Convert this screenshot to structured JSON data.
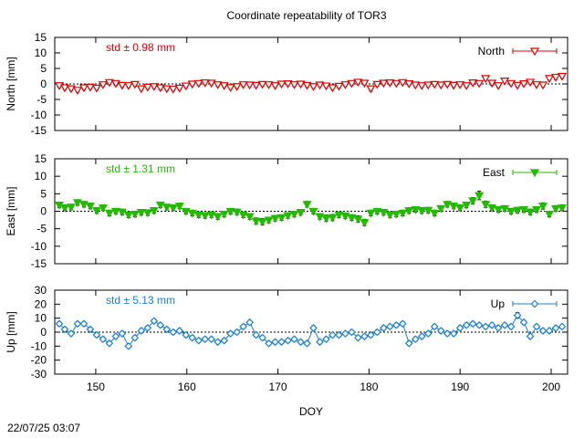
{
  "title": "Coordinate repeatability of TOR3",
  "timestamp": "22/07/25 03:07",
  "colors": {
    "north": "#dd0000",
    "east": "#22bb00",
    "up": "#1a80d8",
    "errorbar": "#000000"
  },
  "chart_data": [
    {
      "type": "scatter",
      "name": "North",
      "legend": "North",
      "legend_marker": "triangle-down-open",
      "ylabel": "North [mm]",
      "std_label": "std ± 0.98 mm",
      "xlim": [
        145.5,
        201.8
      ],
      "ylim": [
        -15,
        15
      ],
      "yticks": [
        -15,
        -10,
        -5,
        0,
        5,
        10,
        15
      ],
      "xticks": [
        150,
        160,
        170,
        180,
        190,
        200
      ],
      "x": [
        146,
        146.6,
        147.3,
        148,
        148.7,
        149.4,
        150.1,
        150.8,
        151.5,
        152.2,
        152.9,
        153.6,
        154.3,
        155,
        155.7,
        156.4,
        157.1,
        157.8,
        158.5,
        159.2,
        159.9,
        160.6,
        161.3,
        162,
        162.7,
        163.4,
        164.1,
        164.8,
        165.5,
        166.2,
        166.9,
        167.6,
        168.3,
        169,
        169.7,
        170.4,
        171.1,
        171.8,
        172.5,
        173.2,
        173.9,
        174.6,
        175.3,
        176,
        176.7,
        177.4,
        178.1,
        178.8,
        179.5,
        180.2,
        180.9,
        181.6,
        182.3,
        183,
        183.7,
        184.4,
        185.1,
        185.8,
        186.5,
        187.2,
        187.9,
        188.6,
        189.3,
        190,
        190.7,
        191.4,
        192.1,
        192.8,
        193.5,
        194.2,
        194.9,
        195.6,
        196.3,
        197,
        197.7,
        198.4,
        199.1,
        199.8,
        200.5,
        201.2
      ],
      "y": [
        -0.5,
        -1.2,
        -1.5,
        -2.0,
        -1.2,
        -1.0,
        -1.3,
        -0.2,
        0.5,
        0.2,
        -0.4,
        -0.5,
        -0.1,
        -1.5,
        -1.0,
        -0.8,
        -1.2,
        -1.5,
        -1.6,
        -1.3,
        -0.6,
        0.0,
        0.2,
        0.4,
        0.3,
        -0.2,
        -0.5,
        -1.1,
        -0.8,
        -0.2,
        -0.3,
        -0.4,
        -0.1,
        -0.2,
        -0.5,
        0.0,
        0.1,
        -0.2,
        0.0,
        -0.4,
        -0.8,
        -0.3,
        -0.6,
        -1.2,
        -0.7,
        -0.2,
        0.2,
        0.6,
        0.3,
        -1.5,
        -0.1,
        0.3,
        0.4,
        0.2,
        0.5,
        0.1,
        -0.3,
        -0.5,
        -0.3,
        -0.1,
        -0.3,
        -0.1,
        -0.4,
        -0.2,
        -0.5,
        0.4,
        0.2,
        1.8,
        0.3,
        -0.5,
        1.0,
        0.2,
        -0.4,
        0.1,
        0.6,
        -0.2,
        -0.3,
        1.8,
        2.2,
        2.5
      ],
      "errors": [
        0.6,
        0.6,
        0.6,
        0.6,
        0.6,
        0.6,
        0.6,
        0.6,
        0.6,
        0.7,
        0.6,
        0.6,
        0.6,
        0.6,
        0.6,
        0.6,
        0.7,
        0.6,
        0.6,
        0.6,
        0.6,
        0.6,
        0.6,
        0.6,
        0.6,
        0.6,
        0.6,
        0.6,
        0.6,
        0.6,
        0.6,
        0.6,
        0.6,
        0.6,
        0.6,
        0.6,
        0.6,
        0.6,
        0.6,
        0.6,
        0.6,
        0.6,
        0.6,
        0.6,
        0.6,
        0.6,
        0.6,
        0.7,
        0.6,
        0.8,
        0.6,
        0.6,
        0.6,
        0.6,
        0.6,
        0.6,
        0.6,
        0.6,
        0.6,
        0.6,
        0.6,
        0.6,
        0.6,
        0.6,
        0.6,
        0.6,
        0.6,
        0.6,
        0.8,
        0.6,
        0.6,
        0.6,
        0.6,
        0.6,
        0.6,
        0.6,
        0.6,
        0.6,
        0.7,
        0.6
      ]
    },
    {
      "type": "scatter",
      "name": "East",
      "legend": "East",
      "legend_marker": "triangle-down-filled",
      "ylabel": "East [mm]",
      "std_label": "std ± 1.31 mm",
      "xlim": [
        145.5,
        201.8
      ],
      "ylim": [
        -15,
        15
      ],
      "yticks": [
        -15,
        -10,
        -5,
        0,
        5,
        10,
        15
      ],
      "xticks": [
        150,
        160,
        170,
        180,
        190,
        200
      ],
      "x": [
        146,
        146.6,
        147.3,
        148,
        148.7,
        149.4,
        150.1,
        150.8,
        151.5,
        152.2,
        152.9,
        153.6,
        154.3,
        155,
        155.7,
        156.4,
        157.1,
        157.8,
        158.5,
        159.2,
        159.9,
        160.6,
        161.3,
        162,
        162.7,
        163.4,
        164.1,
        164.8,
        165.5,
        166.2,
        166.9,
        167.6,
        168.3,
        169,
        169.7,
        170.4,
        171.1,
        171.8,
        172.5,
        173.2,
        173.9,
        174.6,
        175.3,
        176,
        176.7,
        177.4,
        178.1,
        178.8,
        179.5,
        180.2,
        180.9,
        181.6,
        182.3,
        183,
        183.7,
        184.4,
        185.1,
        185.8,
        186.5,
        187.2,
        187.9,
        188.6,
        189.3,
        190,
        190.7,
        191.4,
        192.1,
        192.8,
        193.5,
        194.2,
        194.9,
        195.6,
        196.3,
        197,
        197.7,
        198.4,
        199.1,
        199.8,
        200.5,
        201.2
      ],
      "y": [
        1.8,
        1.0,
        1.2,
        2.5,
        2.0,
        1.5,
        0.2,
        1.0,
        -0.5,
        0.0,
        -0.2,
        -1.0,
        -0.8,
        -0.3,
        -0.4,
        0.2,
        1.8,
        1.2,
        1.0,
        1.5,
        0.0,
        -0.5,
        -1.0,
        -1.2,
        -1.0,
        -1.5,
        -0.8,
        0.0,
        -0.2,
        -1.0,
        -1.5,
        -2.8,
        -3.0,
        -2.5,
        -2.0,
        -1.8,
        -1.2,
        -0.8,
        -0.3,
        2.0,
        0.0,
        -1.5,
        -2.0,
        -1.8,
        -1.0,
        -1.3,
        -1.8,
        -2.2,
        -3.2,
        -0.5,
        0.0,
        -0.3,
        -1.0,
        -0.8,
        -0.5,
        0.2,
        0.5,
        0.2,
        0.3,
        -0.5,
        0.8,
        2.0,
        1.5,
        1.0,
        1.8,
        3.0,
        4.5,
        2.0,
        1.0,
        0.5,
        0.8,
        0.0,
        0.3,
        0.5,
        -0.2,
        0.5,
        1.5,
        -0.8,
        0.8,
        1.0
      ],
      "errors": [
        0.8,
        0.8,
        0.8,
        0.8,
        0.8,
        0.8,
        0.8,
        0.8,
        0.8,
        0.8,
        0.8,
        0.8,
        0.8,
        0.8,
        0.8,
        0.8,
        0.8,
        0.8,
        0.8,
        0.8,
        0.8,
        0.8,
        0.8,
        0.8,
        0.8,
        0.8,
        0.8,
        0.8,
        0.8,
        0.8,
        0.8,
        0.9,
        0.9,
        0.8,
        0.8,
        0.8,
        0.8,
        0.8,
        0.8,
        0.8,
        0.8,
        0.8,
        0.9,
        0.9,
        0.8,
        0.8,
        0.8,
        0.9,
        0.9,
        0.8,
        0.8,
        0.8,
        0.8,
        0.8,
        0.8,
        0.8,
        0.8,
        0.8,
        0.8,
        0.8,
        0.8,
        0.8,
        0.8,
        0.8,
        0.8,
        0.9,
        1.2,
        0.9,
        0.8,
        0.8,
        0.8,
        0.8,
        0.8,
        0.8,
        0.8,
        0.8,
        0.9,
        0.8,
        0.8,
        0.8
      ]
    },
    {
      "type": "line",
      "name": "Up",
      "legend": "Up",
      "legend_marker": "diamond-open",
      "ylabel": "Up [mm]",
      "std_label": "std ± 5.13 mm",
      "xlabel": "DOY",
      "xlim": [
        145.5,
        201.8
      ],
      "ylim": [
        -30,
        30
      ],
      "yticks": [
        -30,
        -20,
        -10,
        0,
        10,
        20,
        30
      ],
      "xticks": [
        150,
        160,
        170,
        180,
        190,
        200
      ],
      "x": [
        146,
        146.6,
        147.3,
        148,
        148.7,
        149.4,
        150.1,
        150.8,
        151.5,
        152.2,
        152.9,
        153.6,
        154.3,
        155,
        155.7,
        156.4,
        157.1,
        157.8,
        158.5,
        159.2,
        159.9,
        160.6,
        161.3,
        162,
        162.7,
        163.4,
        164.1,
        164.8,
        165.5,
        166.2,
        166.9,
        167.6,
        168.3,
        169,
        169.7,
        170.4,
        171.1,
        171.8,
        172.5,
        173.2,
        173.9,
        174.6,
        175.3,
        176,
        176.7,
        177.4,
        178.1,
        178.8,
        179.5,
        180.2,
        180.9,
        181.6,
        182.3,
        183,
        183.7,
        184.4,
        185.1,
        185.8,
        186.5,
        187.2,
        187.9,
        188.6,
        189.3,
        190,
        190.7,
        191.4,
        192.1,
        192.8,
        193.5,
        194.2,
        194.9,
        195.6,
        196.3,
        197,
        197.7,
        198.4,
        199.1,
        199.8,
        200.5,
        201.2
      ],
      "y": [
        6,
        2,
        -1,
        6,
        6,
        2,
        -2,
        -5,
        -8,
        -3,
        -1,
        -10,
        -4,
        1,
        3,
        8,
        5,
        2,
        0,
        1,
        -2,
        -4,
        -6,
        -5,
        -5,
        -7,
        -6,
        -1,
        0,
        4,
        7,
        -2,
        -4,
        -8,
        -7,
        -7,
        -6,
        -5,
        -7,
        -8,
        3,
        -7,
        -5,
        -2,
        -2,
        -1,
        0,
        -4,
        -3,
        -2,
        0,
        3,
        4,
        5,
        6,
        -8,
        -5,
        -3,
        -1,
        4,
        1,
        -1,
        -1,
        3,
        5,
        6,
        5,
        4,
        5,
        3,
        5,
        4,
        12,
        7,
        -3,
        4,
        1,
        1,
        3,
        4
      ],
      "errors": [
        1.5,
        1.5,
        1.5,
        1.5,
        1.5,
        1.5,
        1.5,
        1.5,
        1.5,
        1.5,
        1.5,
        1.5,
        1.5,
        1.5,
        1.5,
        1.5,
        1.5,
        1.5,
        1.5,
        1.5,
        1.5,
        1.5,
        1.5,
        1.5,
        1.5,
        1.5,
        1.5,
        1.5,
        1.5,
        1.5,
        1.5,
        1.5,
        1.5,
        1.5,
        1.5,
        1.5,
        1.5,
        1.5,
        1.5,
        1.5,
        1.5,
        1.5,
        1.5,
        1.5,
        1.5,
        1.5,
        1.5,
        1.5,
        1.5,
        1.5,
        1.5,
        1.5,
        1.5,
        1.5,
        1.5,
        1.5,
        1.5,
        1.5,
        1.5,
        1.5,
        1.5,
        1.5,
        1.5,
        1.5,
        1.5,
        1.5,
        1.5,
        1.5,
        1.5,
        1.5,
        1.5,
        1.5,
        2.0,
        1.5,
        1.5,
        1.5,
        1.5,
        1.5,
        1.5,
        1.5
      ]
    }
  ]
}
